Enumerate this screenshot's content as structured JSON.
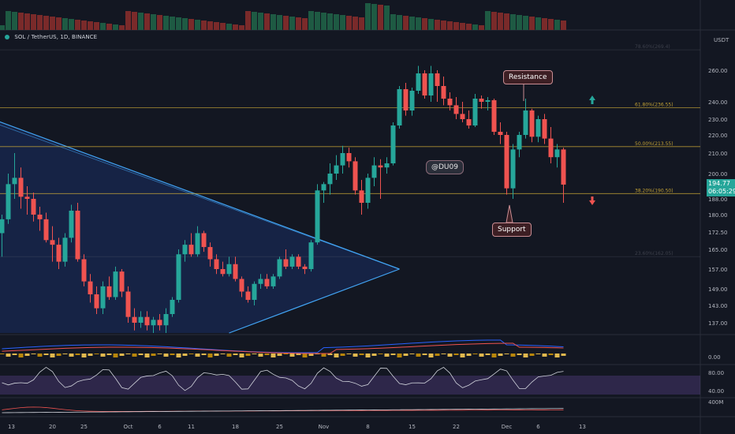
{
  "symbol": {
    "title": "SOL / TetherUS, 1D, BINANCE"
  },
  "price_axis": {
    "currency": "USDT",
    "ticks": [
      "260.00",
      "240.00",
      "230.00",
      "220.00",
      "210.00",
      "200.00",
      "188.00",
      "180.00",
      "172.50",
      "165.00",
      "157.00",
      "149.00",
      "143.00",
      "137.00"
    ],
    "tick_values": [
      260,
      240,
      230,
      220,
      210,
      200,
      188,
      180,
      172.5,
      165,
      157,
      149,
      143,
      137
    ],
    "current_price": "194.77",
    "countdown": "06:05:29"
  },
  "indicator_axis": {
    "macd_tick": "0.00",
    "rsi_ticks": [
      "80.00",
      "40.00"
    ],
    "vol_tick": "400M"
  },
  "time_axis": {
    "labels": [
      "13",
      "20",
      "25",
      "Oct",
      "6",
      "11",
      "18",
      "25",
      "Nov",
      "8",
      "15",
      "22",
      "Dec",
      "6",
      "13"
    ],
    "label_day_index": [
      1.5,
      8,
      13,
      20,
      25,
      30,
      37,
      44,
      51,
      58,
      65,
      72,
      80,
      85,
      92
    ]
  },
  "fib_levels": [
    {
      "label": "78.60%(269.4)",
      "value": 269.4,
      "color": "#787b86"
    },
    {
      "label": "61.80%(236.55)",
      "value": 236.55,
      "color": "#d4af37"
    },
    {
      "label": "50.00%(213.55)",
      "value": 213.55,
      "color": "#d4af37"
    },
    {
      "label": "38.20%(190.50)",
      "value": 190.5,
      "color": "#d4af37"
    },
    {
      "label": "23.60%(162.05)",
      "value": 162.05,
      "color": "#787b86"
    }
  ],
  "annotations": {
    "resistance": "Resistance",
    "support": "Support",
    "watermark": "@DU09"
  },
  "colors": {
    "up": "#26a69a",
    "down": "#ef5350",
    "background": "#131722",
    "triangle": "#2962ff",
    "fib": "#d4af37",
    "macd": "#2962ff",
    "signal": "#ef5350",
    "rsi": "#d1d4dc",
    "rsi_band": "#7e57c2"
  },
  "chart_data": {
    "type": "candlestick",
    "title": "SOL / TetherUS, 1D, BINANCE",
    "xlabel": "",
    "ylabel": "USDT",
    "ylim": [
      133,
      272
    ],
    "candles": [
      {
        "o": 172,
        "h": 180,
        "l": 162,
        "c": 178
      },
      {
        "o": 178,
        "h": 200,
        "l": 176,
        "c": 195
      },
      {
        "o": 195,
        "h": 210,
        "l": 188,
        "c": 198
      },
      {
        "o": 198,
        "h": 203,
        "l": 183,
        "c": 189
      },
      {
        "o": 189,
        "h": 194,
        "l": 180,
        "c": 188
      },
      {
        "o": 188,
        "h": 191,
        "l": 177,
        "c": 180
      },
      {
        "o": 180,
        "h": 184,
        "l": 173,
        "c": 178
      },
      {
        "o": 178,
        "h": 181,
        "l": 168,
        "c": 169
      },
      {
        "o": 169,
        "h": 175,
        "l": 160,
        "c": 167
      },
      {
        "o": 167,
        "h": 170,
        "l": 157,
        "c": 160
      },
      {
        "o": 160,
        "h": 172,
        "l": 158,
        "c": 170
      },
      {
        "o": 170,
        "h": 185,
        "l": 168,
        "c": 182
      },
      {
        "o": 182,
        "h": 186,
        "l": 160,
        "c": 161
      },
      {
        "o": 161,
        "h": 163,
        "l": 150,
        "c": 152
      },
      {
        "o": 152,
        "h": 155,
        "l": 144,
        "c": 147
      },
      {
        "o": 147,
        "h": 150,
        "l": 140,
        "c": 142
      },
      {
        "o": 142,
        "h": 152,
        "l": 140,
        "c": 150
      },
      {
        "o": 150,
        "h": 154,
        "l": 145,
        "c": 146
      },
      {
        "o": 146,
        "h": 158,
        "l": 145,
        "c": 156
      },
      {
        "o": 156,
        "h": 157,
        "l": 146,
        "c": 148
      },
      {
        "o": 148,
        "h": 150,
        "l": 137,
        "c": 139
      },
      {
        "o": 139,
        "h": 142,
        "l": 134,
        "c": 137
      },
      {
        "o": 137,
        "h": 141,
        "l": 135,
        "c": 139
      },
      {
        "o": 139,
        "h": 141,
        "l": 134,
        "c": 136
      },
      {
        "o": 136,
        "h": 139,
        "l": 133,
        "c": 138
      },
      {
        "o": 138,
        "h": 140,
        "l": 134,
        "c": 136
      },
      {
        "o": 136,
        "h": 142,
        "l": 133,
        "c": 140
      },
      {
        "o": 140,
        "h": 146,
        "l": 139,
        "c": 145
      },
      {
        "o": 145,
        "h": 165,
        "l": 144,
        "c": 163
      },
      {
        "o": 163,
        "h": 169,
        "l": 160,
        "c": 167
      },
      {
        "o": 167,
        "h": 172,
        "l": 162,
        "c": 163
      },
      {
        "o": 163,
        "h": 175,
        "l": 162,
        "c": 172
      },
      {
        "o": 172,
        "h": 173,
        "l": 164,
        "c": 166
      },
      {
        "o": 166,
        "h": 168,
        "l": 158,
        "c": 161
      },
      {
        "o": 161,
        "h": 163,
        "l": 155,
        "c": 157
      },
      {
        "o": 157,
        "h": 160,
        "l": 154,
        "c": 155
      },
      {
        "o": 155,
        "h": 162,
        "l": 154,
        "c": 159
      },
      {
        "o": 159,
        "h": 162,
        "l": 152,
        "c": 153
      },
      {
        "o": 153,
        "h": 154,
        "l": 146,
        "c": 148
      },
      {
        "o": 148,
        "h": 150,
        "l": 144,
        "c": 145
      },
      {
        "o": 145,
        "h": 152,
        "l": 143,
        "c": 151
      },
      {
        "o": 151,
        "h": 155,
        "l": 149,
        "c": 153
      },
      {
        "o": 153,
        "h": 155,
        "l": 149,
        "c": 150
      },
      {
        "o": 150,
        "h": 155,
        "l": 149,
        "c": 154
      },
      {
        "o": 154,
        "h": 162,
        "l": 153,
        "c": 161
      },
      {
        "o": 161,
        "h": 165,
        "l": 157,
        "c": 158
      },
      {
        "o": 158,
        "h": 163,
        "l": 157,
        "c": 162
      },
      {
        "o": 162,
        "h": 163,
        "l": 157,
        "c": 158
      },
      {
        "o": 158,
        "h": 159,
        "l": 155,
        "c": 157
      },
      {
        "o": 157,
        "h": 169,
        "l": 156,
        "c": 168
      },
      {
        "o": 168,
        "h": 195,
        "l": 167,
        "c": 192
      },
      {
        "o": 192,
        "h": 196,
        "l": 186,
        "c": 195
      },
      {
        "o": 195,
        "h": 205,
        "l": 190,
        "c": 200
      },
      {
        "o": 200,
        "h": 209,
        "l": 197,
        "c": 204
      },
      {
        "o": 204,
        "h": 214,
        "l": 200,
        "c": 210
      },
      {
        "o": 210,
        "h": 213,
        "l": 203,
        "c": 206
      },
      {
        "o": 206,
        "h": 208,
        "l": 190,
        "c": 192
      },
      {
        "o": 192,
        "h": 197,
        "l": 180,
        "c": 186
      },
      {
        "o": 186,
        "h": 200,
        "l": 183,
        "c": 198
      },
      {
        "o": 198,
        "h": 208,
        "l": 194,
        "c": 204
      },
      {
        "o": 204,
        "h": 207,
        "l": 188,
        "c": 203
      },
      {
        "o": 203,
        "h": 208,
        "l": 200,
        "c": 205
      },
      {
        "o": 205,
        "h": 228,
        "l": 204,
        "c": 226
      },
      {
        "o": 226,
        "h": 250,
        "l": 224,
        "c": 248
      },
      {
        "o": 248,
        "h": 252,
        "l": 232,
        "c": 235
      },
      {
        "o": 235,
        "h": 249,
        "l": 232,
        "c": 247
      },
      {
        "o": 247,
        "h": 262,
        "l": 245,
        "c": 258
      },
      {
        "o": 258,
        "h": 260,
        "l": 242,
        "c": 244
      },
      {
        "o": 244,
        "h": 262,
        "l": 240,
        "c": 258
      },
      {
        "o": 258,
        "h": 260,
        "l": 240,
        "c": 250
      },
      {
        "o": 250,
        "h": 256,
        "l": 238,
        "c": 242
      },
      {
        "o": 242,
        "h": 246,
        "l": 235,
        "c": 238
      },
      {
        "o": 238,
        "h": 243,
        "l": 230,
        "c": 233
      },
      {
        "o": 233,
        "h": 240,
        "l": 228,
        "c": 230
      },
      {
        "o": 230,
        "h": 235,
        "l": 224,
        "c": 226
      },
      {
        "o": 226,
        "h": 245,
        "l": 225,
        "c": 242
      },
      {
        "o": 242,
        "h": 244,
        "l": 236,
        "c": 240
      },
      {
        "o": 240,
        "h": 243,
        "l": 235,
        "c": 241
      },
      {
        "o": 241,
        "h": 242,
        "l": 220,
        "c": 222
      },
      {
        "o": 222,
        "h": 228,
        "l": 215,
        "c": 220
      },
      {
        "o": 220,
        "h": 222,
        "l": 190,
        "c": 193
      },
      {
        "o": 193,
        "h": 215,
        "l": 188,
        "c": 212
      },
      {
        "o": 212,
        "h": 222,
        "l": 208,
        "c": 220
      },
      {
        "o": 220,
        "h": 242,
        "l": 218,
        "c": 235
      },
      {
        "o": 235,
        "h": 236,
        "l": 216,
        "c": 219
      },
      {
        "o": 219,
        "h": 232,
        "l": 216,
        "c": 230
      },
      {
        "o": 230,
        "h": 233,
        "l": 215,
        "c": 218
      },
      {
        "o": 218,
        "h": 225,
        "l": 205,
        "c": 208
      },
      {
        "o": 208,
        "h": 215,
        "l": 203,
        "c": 212
      },
      {
        "o": 212,
        "h": 213,
        "l": 186,
        "c": 194.77
      }
    ],
    "triangle": {
      "upper": [
        [
          0,
          227
        ],
        [
          63,
          157
        ]
      ],
      "lower": [
        [
          36,
          133
        ],
        [
          63,
          157
        ]
      ]
    },
    "volume_scale_max": 500
  }
}
